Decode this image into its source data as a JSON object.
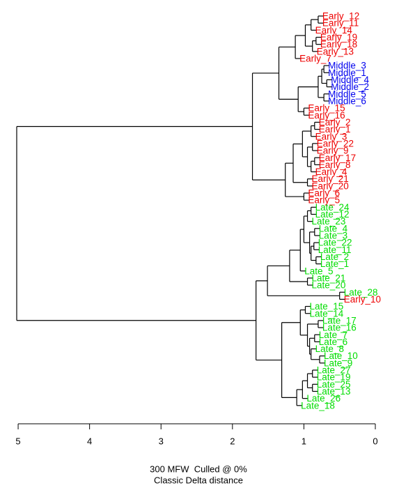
{
  "chart_data": {
    "type": "dendrogram",
    "title": "300 MFW  Culled @ 0%",
    "subtitle": "Classic Delta distance",
    "xlim": [
      5.02,
      0
    ],
    "xticks": [
      5,
      4,
      3,
      2,
      1,
      0
    ],
    "tree": {
      "height": 5.02,
      "children": [
        {
          "height": 1.72,
          "children": [
            {
              "height": 1.35,
              "children": [
                {
                  "height": 1.12,
                  "children": [
                    {
                      "height": 0.98,
                      "children": [
                        {
                          "height": 0.9,
                          "children": [
                            {
                              "height": 0.8,
                              "children": [
                                {
                                  "label": "Early_12",
                                  "color": "#ee0000"
                                },
                                {
                                  "label": "Early_11",
                                  "color": "#ee0000"
                                }
                              ]
                            },
                            {
                              "label": "Early_14",
                              "color": "#ee0000"
                            }
                          ]
                        },
                        {
                          "height": 0.88,
                          "children": [
                            {
                              "height": 0.83,
                              "children": [
                                {
                                  "label": "Early_19",
                                  "color": "#ee0000"
                                },
                                {
                                  "label": "Early_18",
                                  "color": "#ee0000"
                                }
                              ]
                            },
                            {
                              "label": "Early_13",
                              "color": "#ee0000"
                            }
                          ]
                        }
                      ]
                    },
                    {
                      "label": "Early_7",
                      "color": "#ee0000"
                    }
                  ]
                },
                {
                  "height": 1.08,
                  "children": [
                    {
                      "height": 0.8,
                      "children": [
                        {
                          "height": 0.75,
                          "children": [
                            {
                              "height": 0.72,
                              "children": [
                                {
                                  "label": "Middle_3",
                                  "color": "#0000ee"
                                },
                                {
                                  "label": "Middle_1",
                                  "color": "#0000ee"
                                }
                              ]
                            },
                            {
                              "height": 0.68,
                              "children": [
                                {
                                  "label": "Middle_4",
                                  "color": "#0000ee"
                                },
                                {
                                  "label": "Middle_2",
                                  "color": "#0000ee"
                                }
                              ]
                            }
                          ]
                        },
                        {
                          "height": 0.72,
                          "children": [
                            {
                              "label": "Middle_5",
                              "color": "#0000ee"
                            },
                            {
                              "label": "Middle_6",
                              "color": "#0000ee"
                            }
                          ]
                        }
                      ]
                    },
                    {
                      "height": 1.0,
                      "children": [
                        {
                          "label": "Early_15",
                          "color": "#ee0000"
                        },
                        {
                          "label": "Early_16",
                          "color": "#ee0000"
                        }
                      ]
                    }
                  ]
                }
              ]
            },
            {
              "height": 1.26,
              "children": [
                {
                  "height": 1.15,
                  "children": [
                    {
                      "height": 1.02,
                      "children": [
                        {
                          "height": 0.9,
                          "children": [
                            {
                              "height": 0.85,
                              "children": [
                                {
                                  "label": "Early_2",
                                  "color": "#ee0000"
                                },
                                {
                                  "label": "Early_1",
                                  "color": "#ee0000"
                                }
                              ]
                            },
                            {
                              "label": "Early_3",
                              "color": "#ee0000"
                            }
                          ]
                        },
                        {
                          "height": 0.95,
                          "children": [
                            {
                              "height": 0.88,
                              "children": [
                                {
                                  "label": "Early_22",
                                  "color": "#ee0000"
                                },
                                {
                                  "label": "Early_9",
                                  "color": "#ee0000"
                                }
                              ]
                            },
                            {
                              "height": 0.9,
                              "children": [
                                {
                                  "height": 0.85,
                                  "children": [
                                    {
                                      "label": "Early_17",
                                      "color": "#ee0000"
                                    },
                                    {
                                      "label": "Early_8",
                                      "color": "#ee0000"
                                    }
                                  ]
                                },
                                {
                                  "label": "Early_4",
                                  "color": "#ee0000"
                                }
                              ]
                            }
                          ]
                        }
                      ]
                    },
                    {
                      "height": 0.95,
                      "children": [
                        {
                          "label": "Early_21",
                          "color": "#ee0000"
                        },
                        {
                          "label": "Early_20",
                          "color": "#ee0000"
                        }
                      ]
                    }
                  ]
                },
                {
                  "height": 1.0,
                  "children": [
                    {
                      "label": "Early_6",
                      "color": "#ee0000"
                    },
                    {
                      "label": "Early_5",
                      "color": "#ee0000"
                    }
                  ]
                }
              ]
            }
          ]
        },
        {
          "height": 1.67,
          "children": [
            {
              "height": 1.51,
              "children": [
                {
                  "height": 1.2,
                  "children": [
                    {
                      "height": 1.05,
                      "children": [
                        {
                          "height": 1.0,
                          "children": [
                            {
                              "height": 0.95,
                              "children": [
                                {
                                  "height": 0.9,
                                  "children": [
                                    {
                                      "label": "Late_24",
                                      "color": "#00dd00"
                                    },
                                    {
                                      "label": "Late_12",
                                      "color": "#00dd00"
                                    }
                                  ]
                                },
                                {
                                  "label": "Late_23",
                                  "color": "#00dd00"
                                }
                              ]
                            },
                            {
                              "height": 0.92,
                              "children": [
                                {
                                  "height": 0.85,
                                  "children": [
                                    {
                                      "label": "Late_4",
                                      "color": "#00dd00"
                                    },
                                    {
                                      "label": "Late_3",
                                      "color": "#00dd00"
                                    }
                                  ]
                                },
                                {
                                  "height": 0.9,
                                  "children": [
                                    {
                                      "height": 0.86,
                                      "children": [
                                        {
                                          "label": "Late_22",
                                          "color": "#00dd00"
                                        },
                                        {
                                          "label": "Late_11",
                                          "color": "#00dd00"
                                        }
                                      ]
                                    },
                                    {
                                      "height": 0.83,
                                      "children": [
                                        {
                                          "label": "Late_2",
                                          "color": "#00dd00"
                                        },
                                        {
                                          "label": "Late_1",
                                          "color": "#00dd00"
                                        }
                                      ]
                                    }
                                  ]
                                }
                              ]
                            }
                          ]
                        },
                        {
                          "label": "Late_5",
                          "color": "#00dd00"
                        }
                      ]
                    },
                    {
                      "height": 0.95,
                      "children": [
                        {
                          "label": "Late_21",
                          "color": "#00dd00"
                        },
                        {
                          "label": "Late_20",
                          "color": "#00dd00"
                        }
                      ]
                    }
                  ]
                },
                {
                  "height": 0.5,
                  "children": [
                    {
                      "label": "Late_28",
                      "color": "#00dd00"
                    },
                    {
                      "label": "Early_10",
                      "color": "#ee0000"
                    }
                  ]
                }
              ]
            },
            {
              "height": 1.31,
              "children": [
                {
                  "height": 1.05,
                  "children": [
                    {
                      "height": 0.98,
                      "children": [
                        {
                          "label": "Late_15",
                          "color": "#00dd00"
                        },
                        {
                          "label": "Late_14",
                          "color": "#00dd00"
                        }
                      ]
                    },
                    {
                      "height": 0.95,
                      "children": [
                        {
                          "height": 0.8,
                          "children": [
                            {
                              "label": "Late_17",
                              "color": "#00dd00"
                            },
                            {
                              "label": "Late_16",
                              "color": "#00dd00"
                            }
                          ]
                        },
                        {
                          "height": 0.92,
                          "children": [
                            {
                              "height": 0.85,
                              "children": [
                                {
                                  "label": "Late_7",
                                  "color": "#00dd00"
                                },
                                {
                                  "label": "Late_6",
                                  "color": "#00dd00"
                                }
                              ]
                            },
                            {
                              "height": 0.9,
                              "children": [
                                {
                                  "label": "Late_8",
                                  "color": "#00dd00"
                                },
                                {
                                  "height": 0.78,
                                  "children": [
                                    {
                                      "label": "Late_10",
                                      "color": "#00dd00"
                                    },
                                    {
                                      "label": "Late_9",
                                      "color": "#00dd00"
                                    }
                                  ]
                                }
                              ]
                            }
                          ]
                        }
                      ]
                    }
                  ]
                },
                {
                  "height": 1.1,
                  "children": [
                    {
                      "height": 1.02,
                      "children": [
                        {
                          "height": 0.95,
                          "children": [
                            {
                              "height": 0.88,
                              "children": [
                                {
                                  "label": "Late_27",
                                  "color": "#00dd00"
                                },
                                {
                                  "label": "Late_19",
                                  "color": "#00dd00"
                                }
                              ]
                            },
                            {
                              "height": 0.88,
                              "children": [
                                {
                                  "label": "Late_25",
                                  "color": "#00dd00"
                                },
                                {
                                  "label": "Late_13",
                                  "color": "#00dd00"
                                }
                              ]
                            }
                          ]
                        },
                        {
                          "label": "Late_26",
                          "color": "#00dd00"
                        }
                      ]
                    },
                    {
                      "label": "Late_18",
                      "color": "#00dd00"
                    }
                  ]
                }
              ]
            }
          ]
        }
      ]
    }
  }
}
